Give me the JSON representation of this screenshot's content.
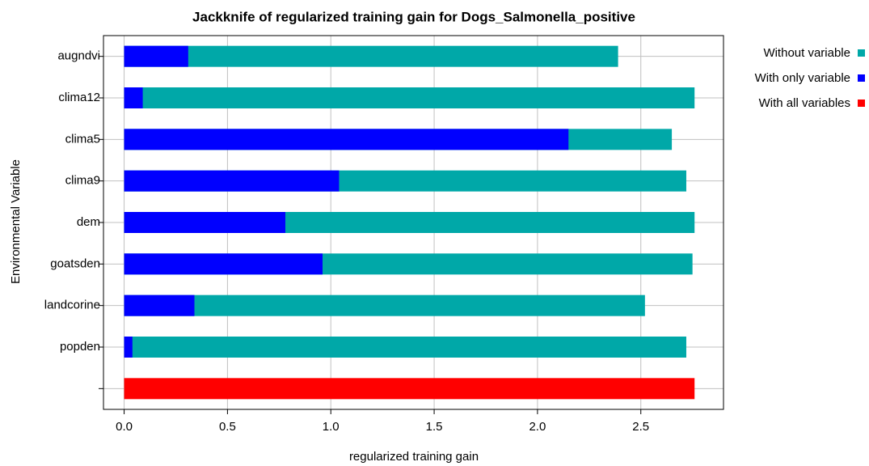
{
  "chart_data": {
    "type": "bar",
    "orientation": "horizontal",
    "title": "Jackknife of regularized training gain for Dogs_Salmonella_positive",
    "x_label": "regularized training gain",
    "y_label": "Environmental Variable",
    "categories": [
      "augndvi",
      "clima12",
      "clima5",
      "clima9",
      "dem",
      "goatsden",
      "landcorine",
      "popden",
      null
    ],
    "series": [
      {
        "name": "Without variable",
        "color": "#00a8a8",
        "values": [
          2.39,
          2.76,
          2.65,
          2.72,
          2.76,
          2.75,
          2.52,
          2.72,
          null
        ]
      },
      {
        "name": "With only variable",
        "color": "#0000ff",
        "values": [
          0.31,
          0.09,
          2.15,
          1.04,
          0.78,
          0.96,
          0.34,
          0.04,
          null
        ]
      },
      {
        "name": "With all variables",
        "color": "#ff0000",
        "values": [
          null,
          null,
          null,
          null,
          null,
          null,
          null,
          null,
          2.76
        ]
      }
    ],
    "xlim": [
      -0.1,
      2.9
    ],
    "xticks": [
      {
        "value": 0,
        "label": "0.0"
      },
      0.5,
      {
        "value": 1,
        "label": "1.0"
      },
      1.5,
      {
        "value": 2,
        "label": "2.0"
      },
      2.5
    ],
    "grid": true,
    "legend": "right"
  }
}
